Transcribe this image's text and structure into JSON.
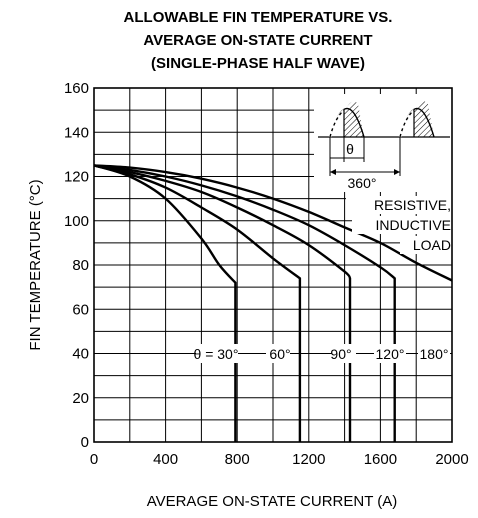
{
  "chart_data": {
    "type": "line",
    "title": [
      "ALLOWABLE FIN TEMPERATURE VS.",
      "AVERAGE ON-STATE CURRENT",
      "(SINGLE-PHASE HALF WAVE)"
    ],
    "xlabel": "AVERAGE ON-STATE CURRENT  (A)",
    "ylabel": "FIN TEMPERATURE  (°C)",
    "xlim": [
      0,
      2000
    ],
    "ylim": [
      0,
      160
    ],
    "x_ticks": [
      0,
      400,
      800,
      1200,
      1600,
      2000
    ],
    "y_ticks": [
      0,
      20,
      40,
      60,
      80,
      100,
      120,
      140,
      160
    ],
    "grid": true,
    "series": [
      {
        "name": "θ = 30°",
        "x": [
          0,
          200,
          400,
          600,
          700,
          790,
          790
        ],
        "y": [
          125,
          120,
          110,
          92,
          80,
          72,
          0
        ]
      },
      {
        "name": "60°",
        "x": [
          0,
          200,
          400,
          600,
          800,
          1000,
          1150,
          1150
        ],
        "y": [
          125,
          121,
          115,
          106,
          96,
          83,
          74,
          0
        ]
      },
      {
        "name": "90°",
        "x": [
          0,
          200,
          400,
          600,
          800,
          1000,
          1200,
          1400,
          1430,
          1430
        ],
        "y": [
          125,
          122,
          118,
          113,
          106,
          98,
          89,
          77,
          74,
          0
        ]
      },
      {
        "name": "120°",
        "x": [
          0,
          200,
          400,
          600,
          800,
          1000,
          1200,
          1400,
          1600,
          1680,
          1680
        ],
        "y": [
          125,
          123,
          120,
          116,
          111,
          105,
          98,
          89,
          79,
          74,
          0
        ]
      },
      {
        "name": "180°",
        "x": [
          0,
          200,
          400,
          600,
          800,
          1000,
          1200,
          1400,
          1600,
          1800,
          2000
        ],
        "y": [
          125,
          124,
          122,
          119,
          115,
          110,
          104,
          97,
          90,
          81,
          73
        ]
      }
    ],
    "inset": {
      "angle_label": "θ",
      "period_label": "360°"
    },
    "annotations": [
      "RESISTIVE,",
      "INDUCTIVE",
      "LOAD"
    ]
  }
}
